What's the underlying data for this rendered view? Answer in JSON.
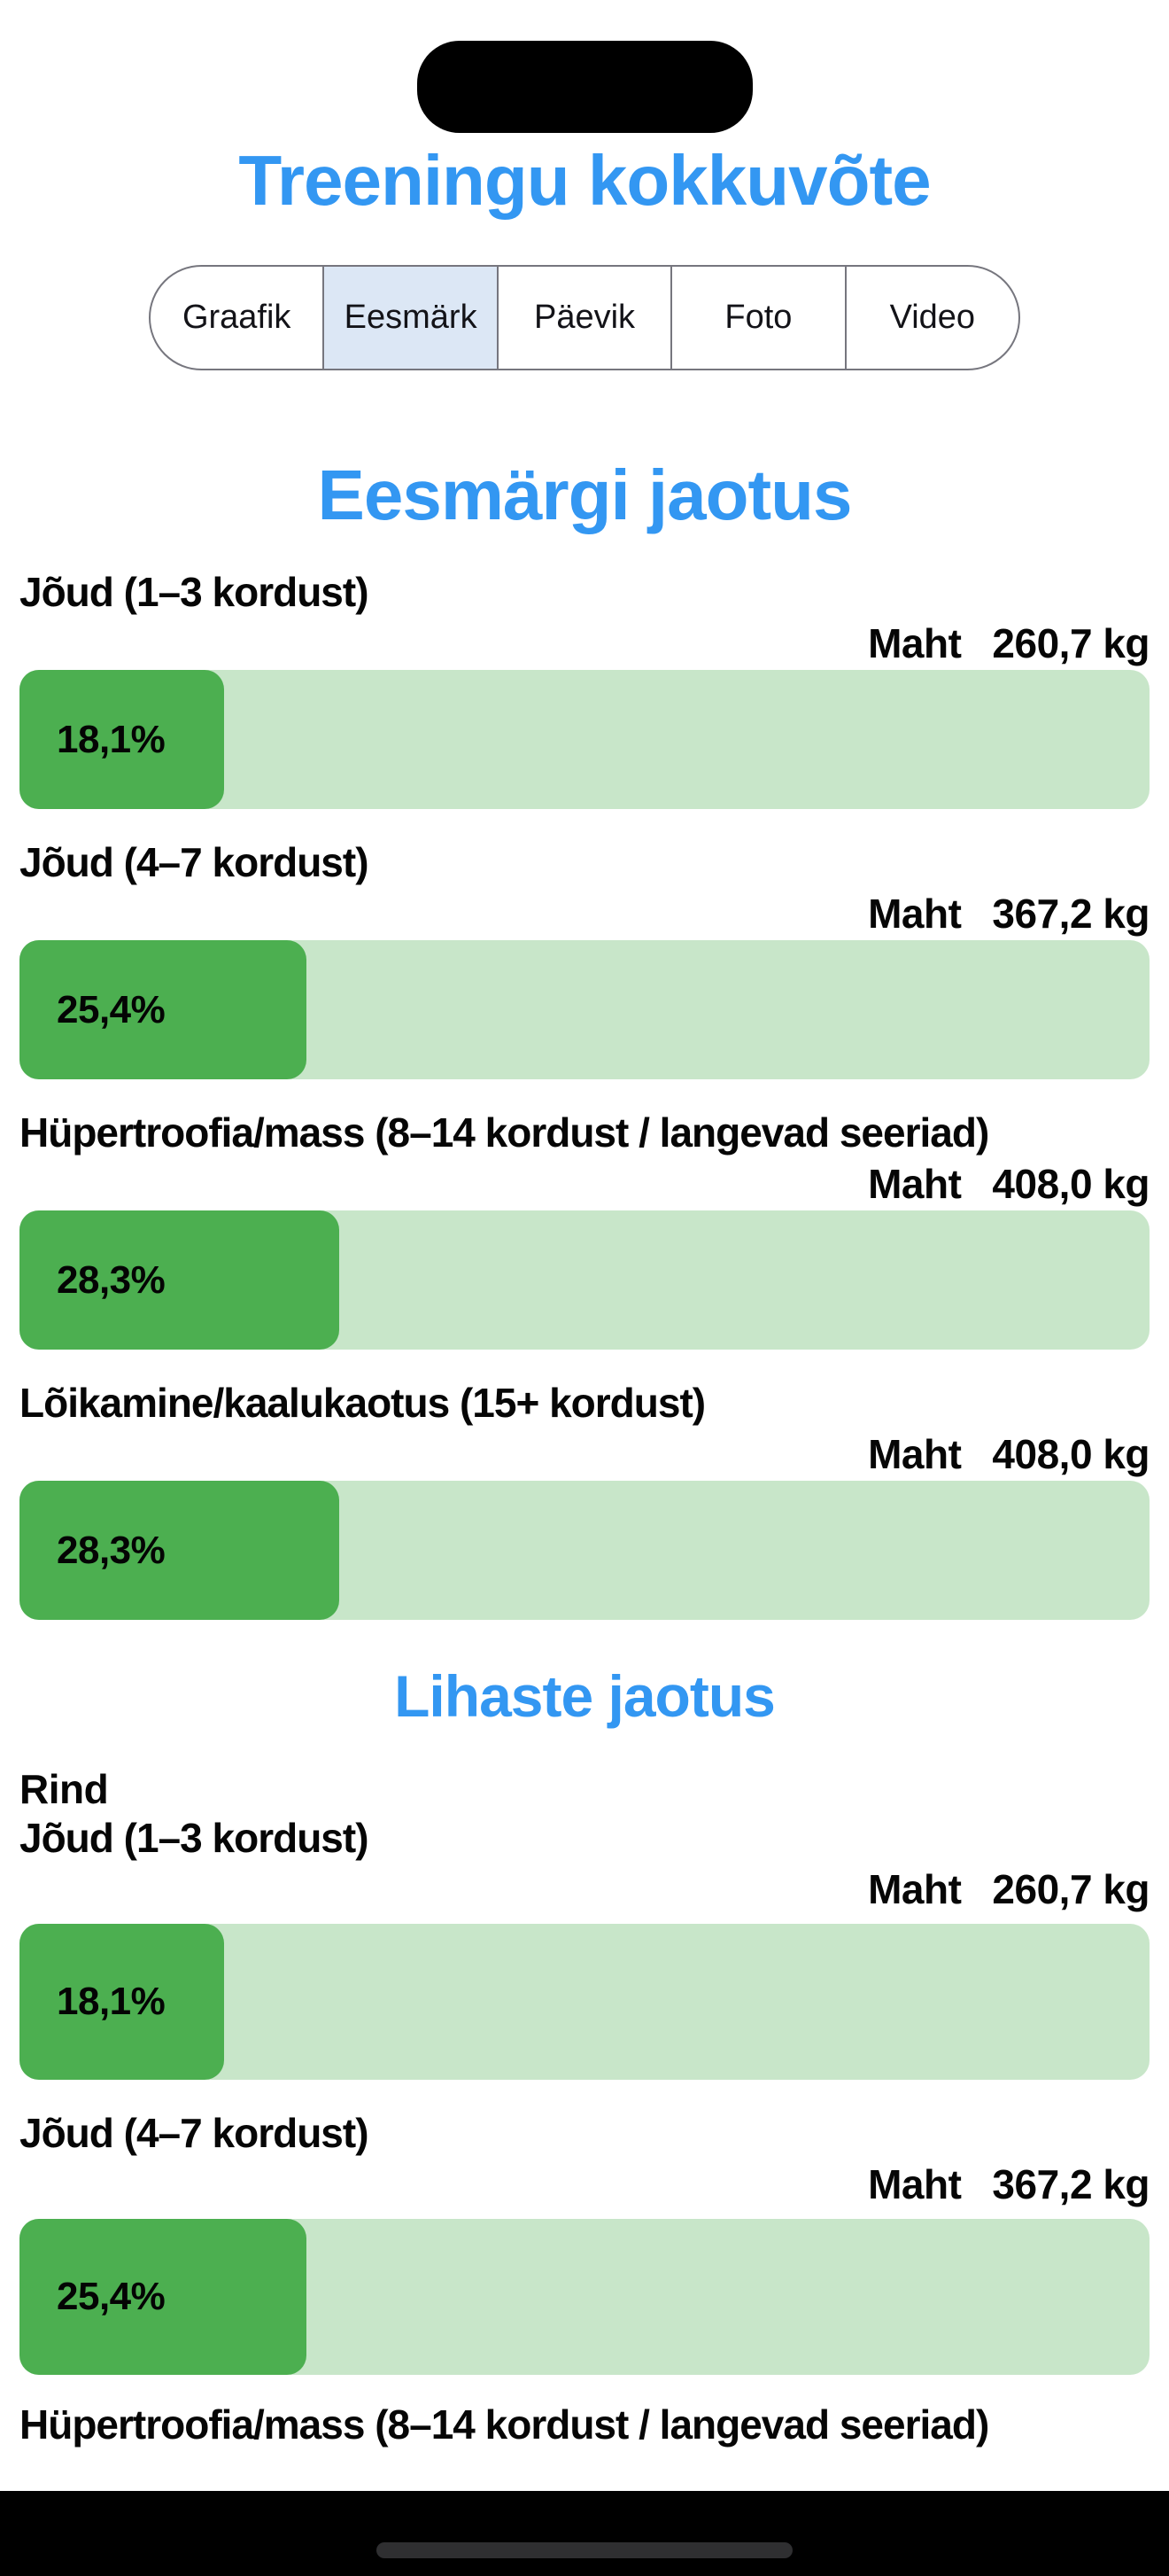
{
  "colors": {
    "accent-blue": "#3397F2",
    "bar-fill-green": "#4CAF50",
    "bar-track-green": "#C8E6C9",
    "tab-selected-bg": "#DCE7F5",
    "control-border": "#76767E",
    "text-black": "#060606",
    "home-indicator": "#2F2F31"
  },
  "header": {
    "title": "Treeningu kokkuvõte"
  },
  "tabs": {
    "items": [
      {
        "label": "Graafik",
        "selected": false
      },
      {
        "label": "Eesmärk",
        "selected": true
      },
      {
        "label": "Päevik",
        "selected": false
      },
      {
        "label": "Foto",
        "selected": false
      },
      {
        "label": "Video",
        "selected": false
      }
    ]
  },
  "sections": [
    {
      "heading": "Eesmärgi jaotus",
      "rows": [
        {
          "label": "Jõud (1–3 kordust)",
          "maht_label": "Maht",
          "value": "260,7 kg",
          "pct": 18.1,
          "pct_label": "18,1%"
        },
        {
          "label": "Jõud (4–7 kordust)",
          "maht_label": "Maht",
          "value": "367,2 kg",
          "pct": 25.4,
          "pct_label": "25,4%"
        },
        {
          "label": "Hüpertroofia/mass (8–14 kordust / langevad seeriad)",
          "maht_label": "Maht",
          "value": "408,0 kg",
          "pct": 28.3,
          "pct_label": "28,3%"
        },
        {
          "label": "Lõikamine/kaalukaotus (15+ kordust)",
          "maht_label": "Maht",
          "value": "408,0 kg",
          "pct": 28.3,
          "pct_label": "28,3%"
        }
      ]
    },
    {
      "heading": "Lihaste jaotus",
      "subheading": "Rind",
      "rows": [
        {
          "label": "Jõud (1–3 kordust)",
          "maht_label": "Maht",
          "value": "260,7 kg",
          "pct": 18.1,
          "pct_label": "18,1%"
        },
        {
          "label": "Jõud (4–7 kordust)",
          "maht_label": "Maht",
          "value": "367,2 kg",
          "pct": 25.4,
          "pct_label": "25,4%"
        },
        {
          "label": "Hüpertroofia/mass (8–14 kordust / langevad seeriad)"
        }
      ]
    }
  ]
}
